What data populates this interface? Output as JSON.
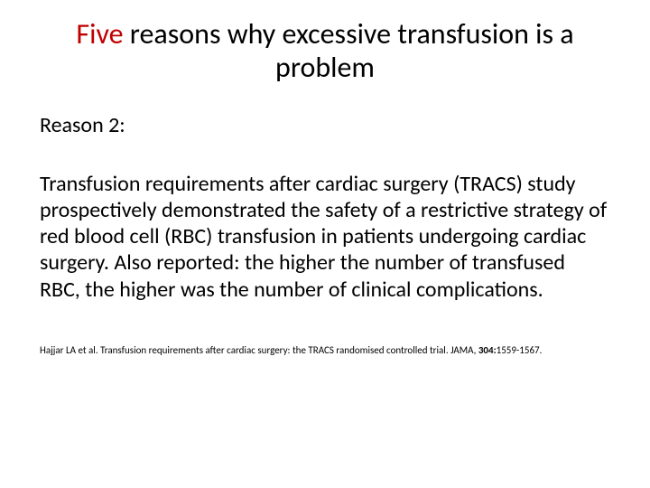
{
  "slide": {
    "title_accent": "Five",
    "title_rest": " reasons why excessive transfusion is a problem",
    "subheading": "Reason 2:",
    "body": "Transfusion requirements after cardiac surgery (TRACS) study prospectively demonstrated the safety of a restrictive strategy of red blood cell (RBC) transfusion in patients undergoing cardiac surgery. Also reported: the higher the number of transfused RBC, the higher was the number of clinical complications.",
    "citation_prefix": "Hajjar LA et al. Transfusion requirements after cardiac surgery: the TRACS randomised controlled trial. JAMA, ",
    "citation_bold": "304:",
    "citation_suffix": "1559-1567."
  },
  "colors": {
    "accent": "#c00000",
    "text": "#000000",
    "background": "#ffffff"
  },
  "typography": {
    "title_fontsize": 32,
    "subheading_fontsize": 24,
    "body_fontsize": 24,
    "citation_fontsize": 11
  }
}
